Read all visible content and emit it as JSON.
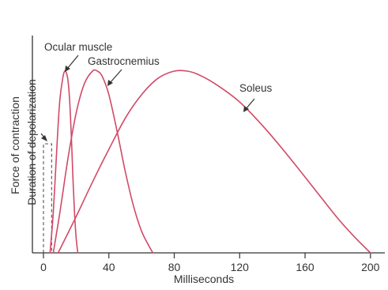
{
  "chart_data": {
    "type": "line",
    "xlabel": "Milliseconds",
    "ylabel": "Force of contraction",
    "xlim": [
      -2,
      205
    ],
    "ylim": [
      0,
      1
    ],
    "xticks": [
      0,
      40,
      80,
      120,
      160,
      200
    ],
    "grid": false,
    "colors": {
      "curve": "#d14a67",
      "axis": "#333333",
      "depolarization": "#555555"
    },
    "depolarization": {
      "label": "Duration of depolarization",
      "x_start": 0,
      "x_end": 5,
      "peak": 0.6
    },
    "series": [
      {
        "name": "Ocular muscle",
        "points": [
          [
            4,
            0
          ],
          [
            6,
            0.22
          ],
          [
            8,
            0.55
          ],
          [
            10,
            0.84
          ],
          [
            12,
            0.97
          ],
          [
            13,
            1.0
          ],
          [
            14,
            0.99
          ],
          [
            15,
            0.95
          ],
          [
            16,
            0.84
          ],
          [
            17,
            0.65
          ],
          [
            18,
            0.42
          ],
          [
            19,
            0.22
          ],
          [
            20,
            0.08
          ],
          [
            21,
            0
          ]
        ]
      },
      {
        "name": "Gastrocnemius",
        "points": [
          [
            6,
            0
          ],
          [
            10,
            0.22
          ],
          [
            15,
            0.52
          ],
          [
            20,
            0.77
          ],
          [
            25,
            0.93
          ],
          [
            30,
            1.0
          ],
          [
            33,
            1.0
          ],
          [
            36,
            0.97
          ],
          [
            40,
            0.87
          ],
          [
            45,
            0.67
          ],
          [
            50,
            0.45
          ],
          [
            55,
            0.26
          ],
          [
            60,
            0.12
          ],
          [
            65,
            0.03
          ],
          [
            67,
            0
          ]
        ]
      },
      {
        "name": "Soleus",
        "points": [
          [
            9,
            0
          ],
          [
            20,
            0.2
          ],
          [
            30,
            0.39
          ],
          [
            40,
            0.57
          ],
          [
            50,
            0.74
          ],
          [
            60,
            0.87
          ],
          [
            70,
            0.96
          ],
          [
            80,
            1.0
          ],
          [
            88,
            1.0
          ],
          [
            95,
            0.98
          ],
          [
            105,
            0.93
          ],
          [
            120,
            0.83
          ],
          [
            135,
            0.69
          ],
          [
            150,
            0.53
          ],
          [
            165,
            0.36
          ],
          [
            180,
            0.19
          ],
          [
            190,
            0.09
          ],
          [
            200,
            0
          ]
        ]
      }
    ]
  }
}
